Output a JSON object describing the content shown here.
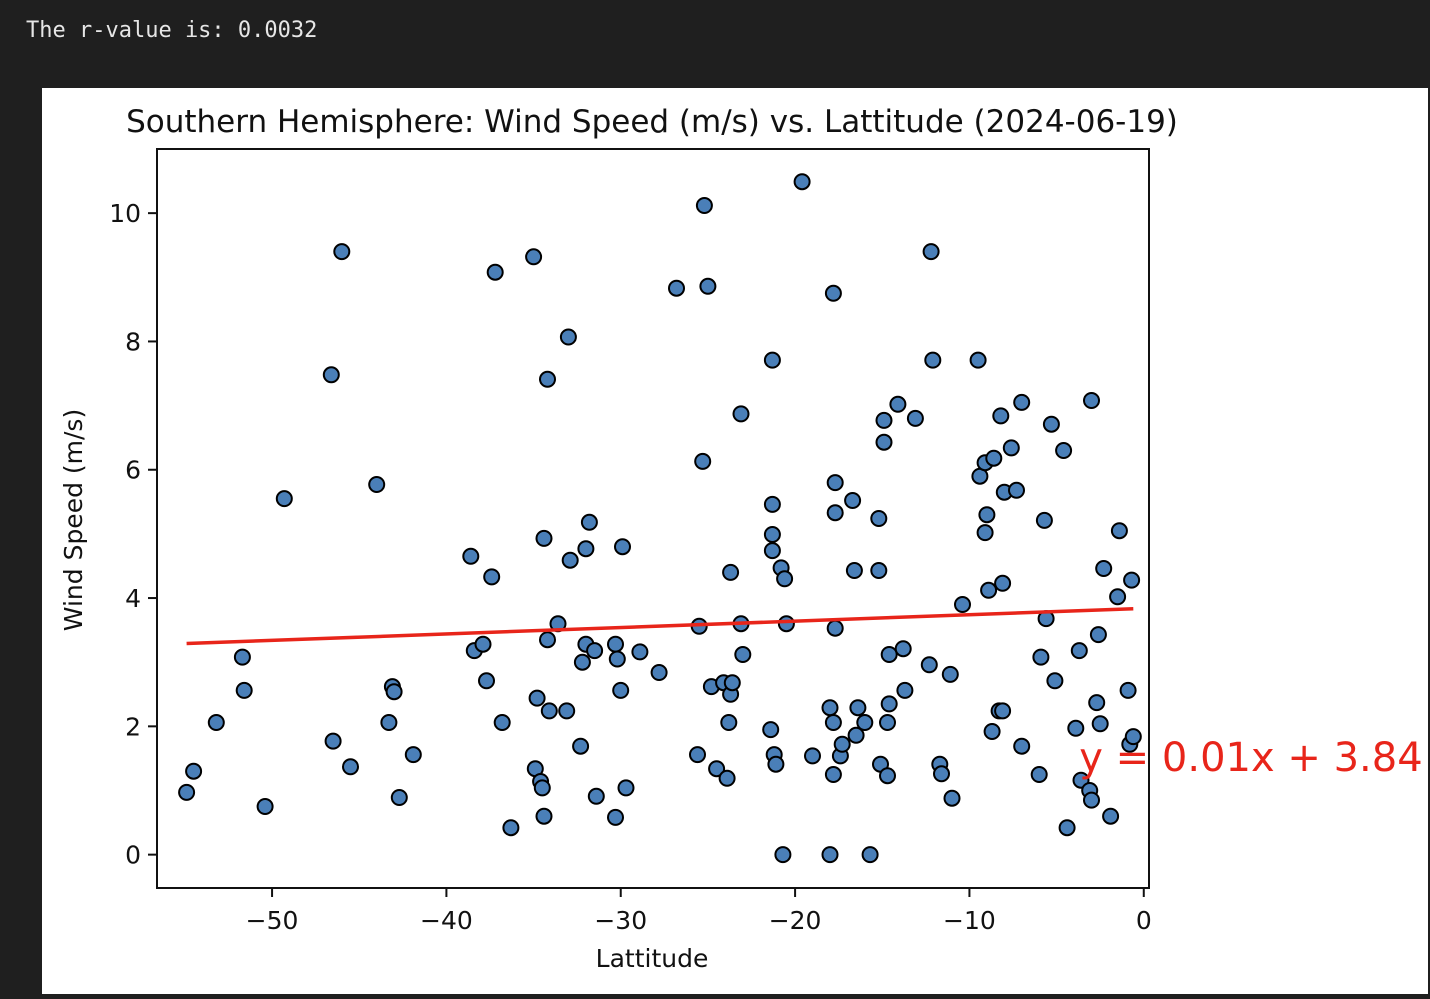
{
  "console": {
    "output_text": "The r-value is: 0.0032"
  },
  "chart_data": {
    "type": "scatter",
    "title": "Southern Hemisphere: Wind Speed (m/s) vs. Lattitude (2024-06-19)",
    "xlabel": "Lattitude",
    "ylabel": "Wind Speed (m/s)",
    "xlim": [
      -56.6,
      0.3
    ],
    "ylim": [
      -0.52,
      11.0
    ],
    "xticks": [
      -50,
      -40,
      -30,
      -20,
      -10,
      0
    ],
    "xtick_labels": [
      "−50",
      "−40",
      "−30",
      "−20",
      "−10",
      "0"
    ],
    "yticks": [
      0,
      2,
      4,
      6,
      8,
      10
    ],
    "ytick_labels": [
      "0",
      "2",
      "4",
      "6",
      "8",
      "10"
    ],
    "grid": false,
    "marker_color": "#4a7fb8",
    "marker_edge_color": "#000000",
    "regression": {
      "slope": 0.01,
      "intercept": 3.84,
      "x_range": [
        -54.9,
        -0.6
      ],
      "color": "#e8251a",
      "equation_label": "y = 0.01x + 3.84",
      "label_position": [
        -3.7,
        1.3
      ]
    },
    "points": [
      [
        -54.9,
        0.97
      ],
      [
        -54.5,
        1.3
      ],
      [
        -53.2,
        2.06
      ],
      [
        -51.7,
        3.08
      ],
      [
        -51.6,
        2.56
      ],
      [
        -50.4,
        0.75
      ],
      [
        -49.3,
        5.55
      ],
      [
        -46.6,
        7.48
      ],
      [
        -46.5,
        1.77
      ],
      [
        -46.0,
        9.4
      ],
      [
        -45.5,
        1.37
      ],
      [
        -44.0,
        5.77
      ],
      [
        -43.3,
        2.06
      ],
      [
        -43.1,
        2.62
      ],
      [
        -43.0,
        2.54
      ],
      [
        -42.7,
        0.89
      ],
      [
        -41.9,
        1.56
      ],
      [
        -38.6,
        4.65
      ],
      [
        -38.4,
        3.18
      ],
      [
        -37.9,
        3.28
      ],
      [
        -37.7,
        2.71
      ],
      [
        -37.4,
        4.33
      ],
      [
        -37.2,
        9.08
      ],
      [
        -36.8,
        2.06
      ],
      [
        -36.3,
        0.42
      ],
      [
        -35.0,
        9.32
      ],
      [
        -34.9,
        1.34
      ],
      [
        -34.8,
        2.44
      ],
      [
        -34.6,
        1.14
      ],
      [
        -34.5,
        1.04
      ],
      [
        -34.4,
        4.93
      ],
      [
        -34.4,
        0.6
      ],
      [
        -34.2,
        3.35
      ],
      [
        -34.2,
        7.41
      ],
      [
        -34.1,
        2.24
      ],
      [
        -33.6,
        3.6
      ],
      [
        -33.1,
        2.24
      ],
      [
        -33.0,
        8.07
      ],
      [
        -32.9,
        4.59
      ],
      [
        -32.3,
        1.69
      ],
      [
        -32.2,
        3.0
      ],
      [
        -32.0,
        3.28
      ],
      [
        -32.0,
        4.77
      ],
      [
        -31.8,
        5.18
      ],
      [
        -31.5,
        3.18
      ],
      [
        -31.4,
        0.91
      ],
      [
        -30.3,
        3.28
      ],
      [
        -30.3,
        0.58
      ],
      [
        -30.2,
        3.05
      ],
      [
        -30.0,
        2.56
      ],
      [
        -29.9,
        4.8
      ],
      [
        -29.7,
        1.04
      ],
      [
        -28.9,
        3.16
      ],
      [
        -27.8,
        2.84
      ],
      [
        -26.8,
        8.83
      ],
      [
        -25.6,
        1.56
      ],
      [
        -25.5,
        3.56
      ],
      [
        -25.3,
        6.13
      ],
      [
        -25.2,
        10.12
      ],
      [
        -25.0,
        8.86
      ],
      [
        -24.8,
        2.62
      ],
      [
        -24.5,
        1.34
      ],
      [
        -24.1,
        2.68
      ],
      [
        -23.9,
        1.19
      ],
      [
        -23.8,
        2.06
      ],
      [
        -23.7,
        4.4
      ],
      [
        -23.7,
        2.5
      ],
      [
        -23.6,
        2.68
      ],
      [
        -23.1,
        6.87
      ],
      [
        -23.1,
        3.6
      ],
      [
        -23.0,
        3.12
      ],
      [
        -21.4,
        1.95
      ],
      [
        -21.3,
        7.71
      ],
      [
        -21.3,
        5.46
      ],
      [
        -21.3,
        4.99
      ],
      [
        -21.3,
        4.74
      ],
      [
        -21.2,
        1.56
      ],
      [
        -21.1,
        1.41
      ],
      [
        -20.8,
        4.47
      ],
      [
        -20.7,
        0.0
      ],
      [
        -20.6,
        4.3
      ],
      [
        -20.5,
        3.6
      ],
      [
        -19.6,
        10.49
      ],
      [
        -19.0,
        1.54
      ],
      [
        -18.0,
        2.29
      ],
      [
        -18.0,
        0.0
      ],
      [
        -17.8,
        2.06
      ],
      [
        -17.8,
        8.75
      ],
      [
        -17.8,
        1.25
      ],
      [
        -17.7,
        3.53
      ],
      [
        -17.7,
        5.8
      ],
      [
        -17.7,
        5.33
      ],
      [
        -17.4,
        1.54
      ],
      [
        -17.3,
        1.72
      ],
      [
        -16.7,
        5.52
      ],
      [
        -16.6,
        4.43
      ],
      [
        -16.5,
        1.86
      ],
      [
        -16.4,
        2.29
      ],
      [
        -16.0,
        2.06
      ],
      [
        -15.7,
        0.0
      ],
      [
        -15.2,
        5.24
      ],
      [
        -15.2,
        4.43
      ],
      [
        -15.1,
        1.41
      ],
      [
        -14.9,
        6.77
      ],
      [
        -14.9,
        6.43
      ],
      [
        -14.7,
        2.06
      ],
      [
        -14.7,
        1.23
      ],
      [
        -14.6,
        3.12
      ],
      [
        -14.6,
        2.35
      ],
      [
        -14.1,
        7.02
      ],
      [
        -13.8,
        3.21
      ],
      [
        -13.7,
        2.56
      ],
      [
        -13.1,
        6.8
      ],
      [
        -12.3,
        2.96
      ],
      [
        -12.2,
        9.4
      ],
      [
        -12.1,
        7.71
      ],
      [
        -11.7,
        1.41
      ],
      [
        -11.6,
        1.26
      ],
      [
        -11.1,
        2.81
      ],
      [
        -11.0,
        0.88
      ],
      [
        -10.4,
        3.9
      ],
      [
        -9.5,
        7.71
      ],
      [
        -9.4,
        5.9
      ],
      [
        -9.1,
        6.11
      ],
      [
        -9.1,
        5.02
      ],
      [
        -9.0,
        5.3
      ],
      [
        -8.9,
        4.12
      ],
      [
        -8.7,
        1.92
      ],
      [
        -8.6,
        6.18
      ],
      [
        -8.3,
        2.24
      ],
      [
        -8.2,
        6.84
      ],
      [
        -8.1,
        4.23
      ],
      [
        -8.1,
        2.24
      ],
      [
        -8.0,
        5.65
      ],
      [
        -7.6,
        6.34
      ],
      [
        -7.3,
        5.68
      ],
      [
        -7.0,
        7.05
      ],
      [
        -7.0,
        1.69
      ],
      [
        -6.0,
        1.25
      ],
      [
        -5.9,
        3.08
      ],
      [
        -5.7,
        5.21
      ],
      [
        -5.6,
        3.68
      ],
      [
        -5.3,
        6.71
      ],
      [
        -5.1,
        2.71
      ],
      [
        -4.6,
        6.3
      ],
      [
        -4.4,
        0.42
      ],
      [
        -3.9,
        1.97
      ],
      [
        -3.7,
        3.18
      ],
      [
        -3.6,
        1.16
      ],
      [
        -3.1,
        1.0
      ],
      [
        -3.0,
        7.08
      ],
      [
        -3.0,
        0.85
      ],
      [
        -2.7,
        2.37
      ],
      [
        -2.6,
        3.43
      ],
      [
        -2.5,
        2.04
      ],
      [
        -2.3,
        4.46
      ],
      [
        -1.9,
        0.6
      ],
      [
        -1.5,
        4.02
      ],
      [
        -1.4,
        5.05
      ],
      [
        -0.9,
        2.56
      ],
      [
        -0.8,
        1.72
      ],
      [
        -0.7,
        4.28
      ],
      [
        -0.6,
        1.84
      ]
    ]
  }
}
